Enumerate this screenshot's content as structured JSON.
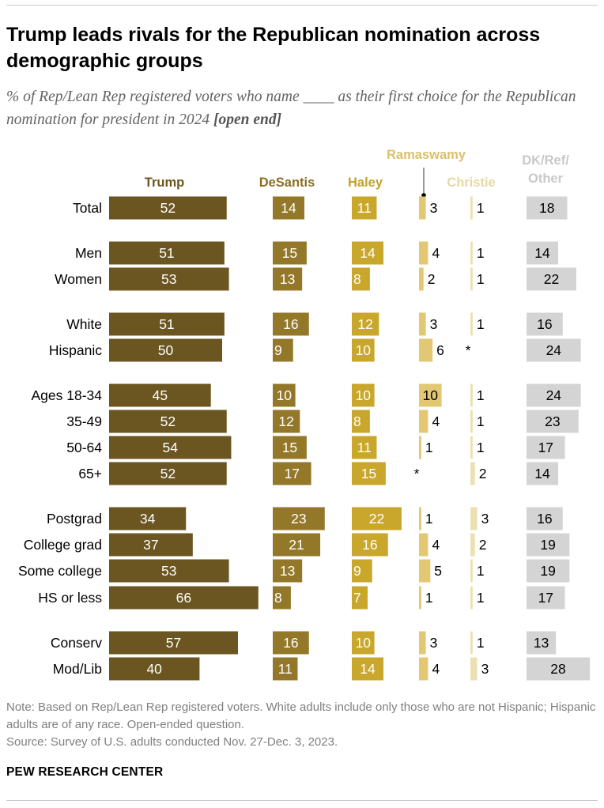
{
  "title": "Trump leads rivals for the Republican nomination across demographic groups",
  "subtitle": {
    "text": "% of Rep/Lean Rep registered voters who name ____ as their first choice for the Republican nomination for president in 2024",
    "tag": "[open end]"
  },
  "note": "Note: Based on Rep/Lean Rep registered voters. White adults include only those who are not Hispanic; Hispanic adults are of any race. Open-ended question.",
  "source": "Source: Survey of U.S. adults conducted Nov. 27-Dec. 3, 2023.",
  "brand": "PEW RESEARCH CENTER",
  "chart_data": {
    "type": "bar",
    "title": "Trump leads rivals for the Republican nomination across demographic groups",
    "unit": "%",
    "categories": [
      "Total",
      "Men",
      "Women",
      "White",
      "Hispanic",
      "Ages 18-34",
      "35-49",
      "50-64",
      "65+",
      "Postgrad",
      "College grad",
      "Some college",
      "HS or less",
      "Conserv",
      "Mod/Lib"
    ],
    "groups": [
      [
        0
      ],
      [
        1,
        2
      ],
      [
        3,
        4
      ],
      [
        5,
        6,
        7,
        8
      ],
      [
        9,
        10,
        11,
        12
      ],
      [
        13,
        14
      ]
    ],
    "series": [
      {
        "name": "Trump",
        "label": "Trump",
        "color": "#6b5520",
        "label_color": "#6b5520",
        "text_color": "#ffffff",
        "values": [
          52,
          51,
          53,
          51,
          50,
          45,
          52,
          54,
          52,
          34,
          37,
          53,
          66,
          57,
          40
        ],
        "display": [
          "52",
          "51",
          "53",
          "51",
          "50",
          "45",
          "52",
          "54",
          "52",
          "34",
          "37",
          "53",
          "66",
          "57",
          "40"
        ]
      },
      {
        "name": "DeSantis",
        "label": "DeSantis",
        "color": "#94782a",
        "label_color": "#8a6e23",
        "text_color": "#ffffff",
        "values": [
          14,
          15,
          13,
          16,
          9,
          10,
          12,
          15,
          17,
          23,
          21,
          13,
          8,
          16,
          11
        ],
        "display": [
          "14",
          "15",
          "13",
          "16",
          "9",
          "10",
          "12",
          "15",
          "17",
          "23",
          "21",
          "13",
          "8",
          "16",
          "11"
        ]
      },
      {
        "name": "Haley",
        "label": "Haley",
        "color": "#c9a72c",
        "label_color": "#c3a12a",
        "text_color": "#ffffff",
        "values": [
          11,
          14,
          8,
          12,
          10,
          10,
          8,
          11,
          15,
          22,
          16,
          9,
          7,
          10,
          14
        ],
        "display": [
          "11",
          "14",
          "8",
          "12",
          "10",
          "10",
          "8",
          "11",
          "15",
          "22",
          "16",
          "9",
          "7",
          "10",
          "14"
        ]
      },
      {
        "name": "Ramaswamy",
        "label": "Ramaswamy",
        "color": "#e2c873",
        "label_color": "#dcc06a",
        "text_color": "#000000",
        "values": [
          3,
          4,
          2,
          3,
          6,
          10,
          4,
          1,
          0,
          1,
          4,
          5,
          1,
          3,
          4
        ],
        "display": [
          "3",
          "4",
          "2",
          "3",
          "6",
          "10",
          "4",
          "1",
          "*",
          "1",
          "4",
          "5",
          "1",
          "3",
          "4"
        ]
      },
      {
        "name": "Christie",
        "label": "Christie",
        "color": "#ece0b2",
        "label_color": "#e6d9a2",
        "text_color": "#000000",
        "values": [
          1,
          1,
          1,
          1,
          0,
          1,
          1,
          1,
          2,
          3,
          2,
          1,
          1,
          1,
          3
        ],
        "display": [
          "1",
          "1",
          "1",
          "1",
          "*",
          "1",
          "1",
          "1",
          "2",
          "3",
          "2",
          "1",
          "1",
          "1",
          "3"
        ]
      },
      {
        "name": "DK/Ref/Other",
        "label": [
          "DK/Ref/",
          "Other"
        ],
        "color": "#d4d4d4",
        "label_color": "#c8c8c8",
        "text_color": "#000000",
        "values": [
          18,
          14,
          22,
          16,
          24,
          24,
          23,
          17,
          14,
          16,
          19,
          19,
          17,
          13,
          28
        ],
        "display": [
          "18",
          "14",
          "22",
          "16",
          "24",
          "24",
          "23",
          "17",
          "14",
          "16",
          "19",
          "19",
          "17",
          "13",
          "28"
        ]
      }
    ]
  }
}
